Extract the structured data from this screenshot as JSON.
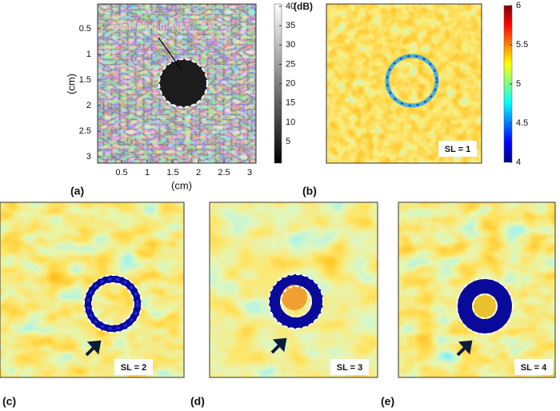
{
  "panels": [
    {
      "label": "(a)",
      "annotation": "Simulated mass",
      "x_axis": {
        "label": "(cm)",
        "ticks": [
          0.5,
          1,
          1.5,
          2,
          2.5,
          3
        ]
      },
      "y_axis": {
        "label": "(cm)",
        "ticks": [
          0.5,
          1,
          1.5,
          2,
          2.5,
          3
        ]
      },
      "colorbar": {
        "unit": "(dB)",
        "ticks": [
          40,
          35,
          30,
          25,
          20,
          15,
          10,
          5
        ]
      }
    },
    {
      "label": "(b)",
      "tag": "SL = 1",
      "colorbar": {
        "ticks": [
          6,
          5.5,
          5,
          4.5,
          4
        ]
      }
    },
    {
      "label": "(c)",
      "tag": "SL = 2"
    },
    {
      "label": "(d)",
      "tag": "SL = 3"
    },
    {
      "label": "(e)",
      "tag": "SL = 4"
    }
  ]
}
